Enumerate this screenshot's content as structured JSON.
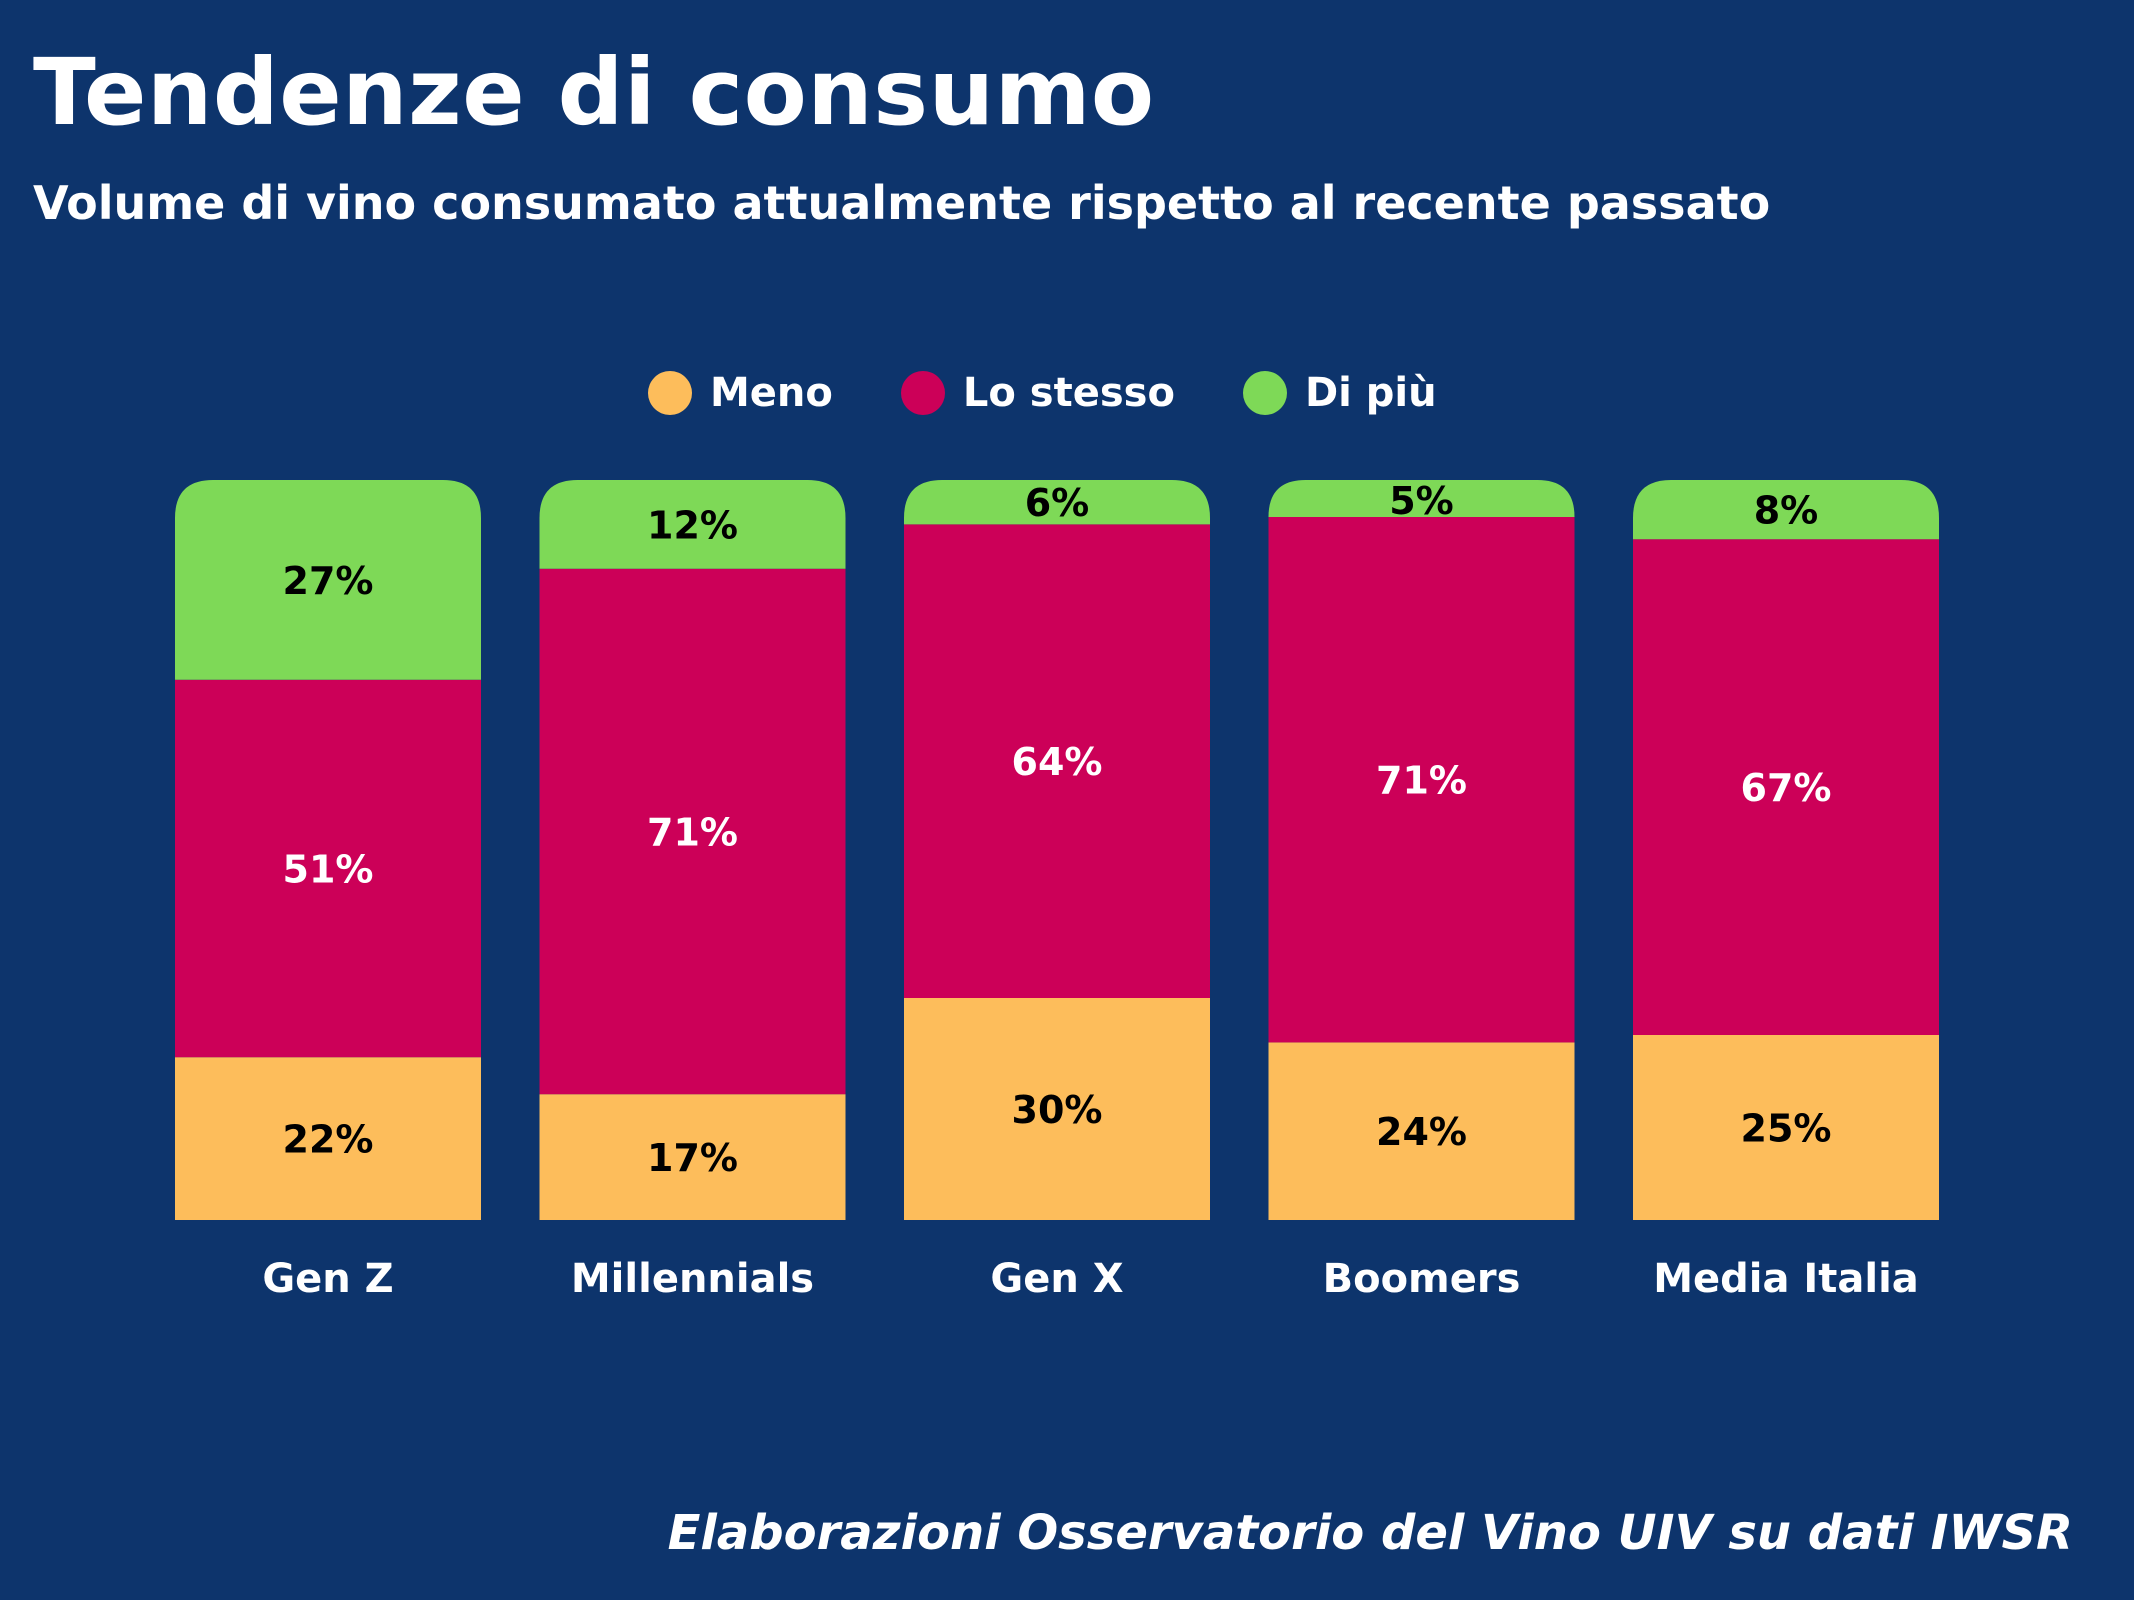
{
  "title": "Tendenze di consumo",
  "subtitle": "Volume di vino consumato attualmente rispetto al recente passato",
  "source": "Elaborazioni Osservatorio del Vino UIV su dati IWSR",
  "chart_data": {
    "type": "bar",
    "stacked": true,
    "categories": [
      "Gen Z",
      "Millennials",
      "Gen X",
      "Boomers",
      "Media Italia"
    ],
    "series": [
      {
        "name": "Meno",
        "color": "#fdbd5b",
        "label_color": "#000000",
        "values": [
          22,
          17,
          30,
          24,
          25
        ]
      },
      {
        "name": "Lo stesso",
        "color": "#cc0058",
        "label_color": "#ffffff",
        "values": [
          51,
          71,
          64,
          71,
          67
        ]
      },
      {
        "name": "Di più",
        "color": "#7ed957",
        "label_color": "#000000",
        "values": [
          27,
          12,
          6,
          5,
          8
        ]
      }
    ],
    "value_suffix": "%",
    "legend_position": "top-center",
    "grid": false,
    "ylim": [
      0,
      100
    ]
  }
}
